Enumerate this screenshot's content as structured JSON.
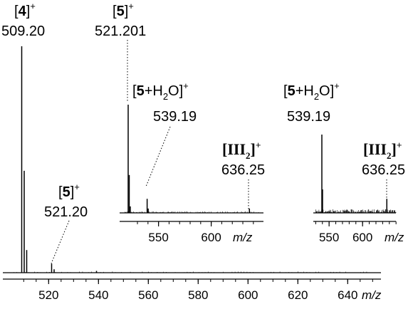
{
  "chart_data": [
    {
      "type": "line",
      "name": "main-spectrum",
      "xlabel": "m/z",
      "xlim": [
        505,
        655
      ],
      "x_ticks": [
        "520",
        "540",
        "560",
        "580",
        "600",
        "620",
        "640"
      ],
      "peaks": [
        {
          "mz": 509.2,
          "rel": 1.0
        },
        {
          "mz": 510.2,
          "rel": 0.45
        },
        {
          "mz": 511.2,
          "rel": 0.1
        },
        {
          "mz": 521.2,
          "rel": 0.04
        },
        {
          "mz": 522.2,
          "rel": 0.015
        },
        {
          "mz": 539.2,
          "rel": 0.008
        }
      ],
      "annotations": [
        {
          "species": "4",
          "charge": "+",
          "mz_text": "509.20"
        },
        {
          "species": "5",
          "charge": "+",
          "mz_text": "521.20"
        }
      ]
    },
    {
      "type": "line",
      "name": "inset-1",
      "xlabel": "m/z",
      "x_ticks": [
        "550",
        "600"
      ],
      "peaks": [
        {
          "mz": 521.2,
          "rel": 1.0
        },
        {
          "mz": 522.2,
          "rel": 0.35
        },
        {
          "mz": 523.2,
          "rel": 0.06
        },
        {
          "mz": 539.19,
          "rel": 0.13
        },
        {
          "mz": 540.2,
          "rel": 0.04
        },
        {
          "mz": 636.25,
          "rel": 0.04
        }
      ],
      "annotations": [
        {
          "species": "5",
          "charge": "+",
          "mz_text": "521.201"
        },
        {
          "species": "5+H",
          "species_sub": "2",
          "species_tail": "O",
          "charge": "+",
          "mz_text": "539.19"
        },
        {
          "species": "III",
          "species_sub": "2",
          "charge": "+",
          "mz_text": "636.25"
        }
      ]
    },
    {
      "type": "line",
      "name": "inset-2",
      "xlabel": "m/z",
      "x_ticks": [
        "550",
        "600"
      ],
      "peaks": [
        {
          "mz": 539.19,
          "rel": 1.0
        },
        {
          "mz": 540.2,
          "rel": 0.3
        },
        {
          "mz": 636.25,
          "rel": 0.18
        }
      ],
      "annotations": [
        {
          "species": "5+H",
          "species_sub": "2",
          "species_tail": "O",
          "charge": "+",
          "mz_text": "539.19"
        },
        {
          "species": "III",
          "species_sub": "2",
          "charge": "+",
          "mz_text": "636.25"
        }
      ]
    }
  ]
}
